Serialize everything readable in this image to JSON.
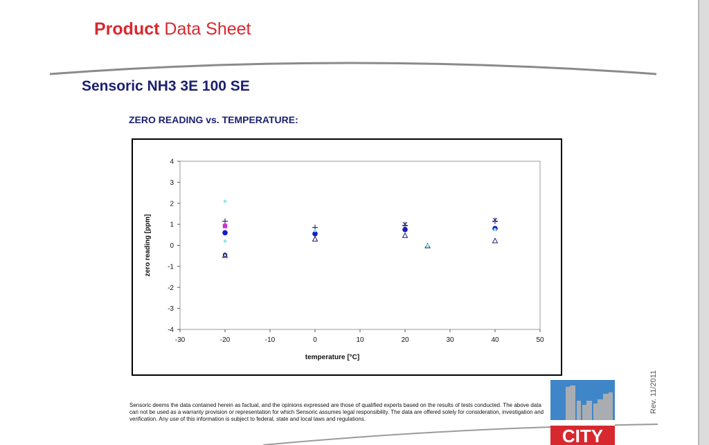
{
  "header": {
    "brand_word": "Product",
    "title_rest": "Data Sheet"
  },
  "product_name": "Sensoric NH3 3E 100 SE",
  "chart_heading": "ZERO READING vs. TEMPERATURE:",
  "chart_data": {
    "type": "scatter",
    "xlabel": "temperature [°C]",
    "ylabel": "zero reading [ppm]",
    "xlim": [
      -30,
      50
    ],
    "ylim": [
      -4,
      4
    ],
    "xticks": [
      -30,
      -20,
      -10,
      0,
      10,
      20,
      30,
      40,
      50
    ],
    "yticks": [
      4,
      3,
      2,
      1,
      0,
      -1,
      -2,
      -3,
      -4
    ],
    "grid": false,
    "legend": "none",
    "series": [
      {
        "marker": "circle-filled",
        "color": "#1a1acc",
        "points": [
          [
            -20,
            0.6
          ],
          [
            0,
            0.55
          ],
          [
            20,
            0.75
          ],
          [
            40,
            0.8
          ]
        ]
      },
      {
        "marker": "triangle-open",
        "color": "#1b1f6e",
        "points": [
          [
            -20,
            -0.48
          ],
          [
            0,
            0.3
          ],
          [
            20,
            0.47
          ],
          [
            25,
            -0.02
          ],
          [
            40,
            0.22
          ]
        ]
      },
      {
        "marker": "plus",
        "color": "#1b1f6e",
        "points": [
          [
            -20,
            1.15
          ],
          [
            0,
            0.85
          ],
          [
            20,
            0.95
          ],
          [
            40,
            1.15
          ]
        ]
      },
      {
        "marker": "star",
        "color": "#1b1f6e",
        "points": [
          [
            20,
            1.0
          ],
          [
            40,
            1.2
          ]
        ]
      },
      {
        "marker": "square-filled",
        "color": "#cc33cc",
        "points": [
          [
            -20,
            0.92
          ]
        ]
      },
      {
        "marker": "dot",
        "color": "#8ee8e8",
        "points": [
          [
            -20,
            2.1
          ],
          [
            -20,
            0.2
          ],
          [
            0,
            0.7
          ],
          [
            25,
            0.0
          ],
          [
            40,
            0.75
          ]
        ]
      },
      {
        "marker": "circle-open",
        "color": "#1b1f6e",
        "points": [
          [
            -20,
            -0.45
          ]
        ]
      }
    ]
  },
  "disclaimer": "Sensoric deems the data contained herein as factual, and the opinions expressed are those of qualified experts based on the results of tests conducted. The above data can not be used as a warranty provision or representation for which Sensoric assumes legal responsibility. The data are offered solely for consideration, investigation and verification. Any use of this information is subject to federal, state and local laws and regulations.",
  "revision": "Rev. 11/2011",
  "logo_text": "CITY",
  "colors": {
    "brand_red": "#d7282f",
    "navy": "#1b1f6e",
    "logo_blue": "#3f86c8",
    "logo_gray": "#a9adb1"
  }
}
